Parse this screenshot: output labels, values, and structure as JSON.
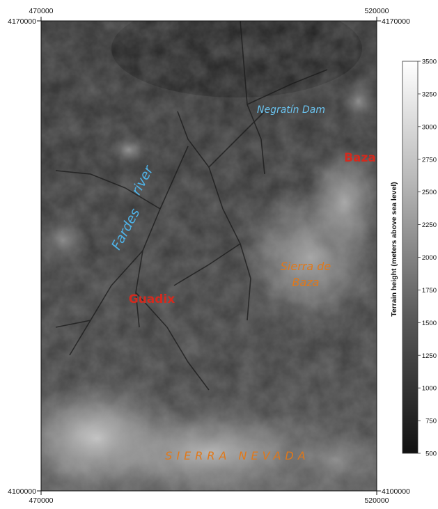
{
  "map": {
    "axes": {
      "x_top_left": "470000",
      "x_top_right": "520000",
      "x_bottom_left": "470000",
      "x_bottom_right": "520000",
      "y_top_left": "4170000",
      "y_top_right": "4170000",
      "y_bottom_left": "4100000",
      "y_bottom_right": "4100000"
    },
    "labels": {
      "negratin": "Negratín Dam",
      "baza": "Baza",
      "fardes": "Fardes",
      "river": "river",
      "guadix": "Guadix",
      "sierra_de": "Sierra de",
      "baza_range": "Baza",
      "sierra_nevada": "SIERRA NEVADA"
    },
    "colors": {
      "river_label": "#4fb3e8",
      "dam_label": "#6cc4f0",
      "town_label": "#d42a1e",
      "range_label": "#e0781a"
    },
    "legend": {
      "title": "Terrain height (meters above sea level)",
      "ticks": [
        "3500",
        "3250",
        "3000",
        "2750",
        "2500",
        "2250",
        "2000",
        "1750",
        "1500",
        "1250",
        "1000",
        "750",
        "500"
      ],
      "min": 500,
      "max": 3500
    }
  }
}
